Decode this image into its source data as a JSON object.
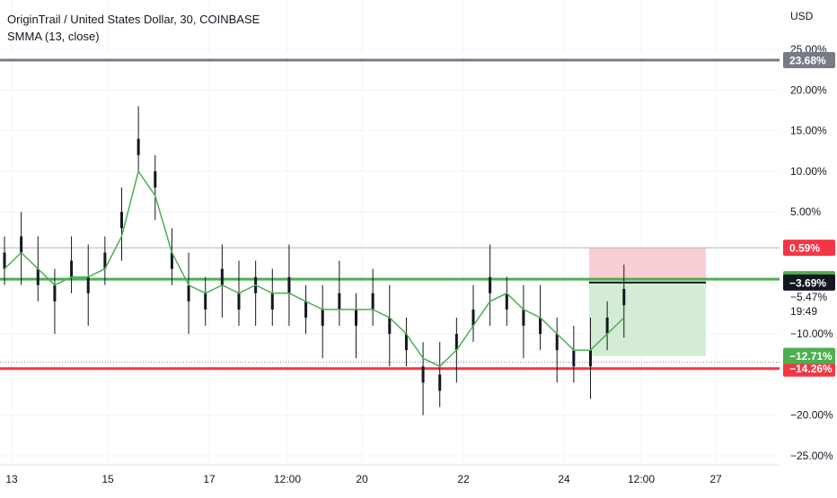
{
  "legend": {
    "symbol": "OriginTrail / United States Dollar, 30, COINBASE",
    "indicator": "SMMA (13, close)"
  },
  "colors": {
    "candle": "#131722",
    "smma": "#4caf50",
    "green_line": "#4caf50",
    "red_line": "#f23645",
    "gray_line": "#787b86",
    "grid": "#f0f3fa",
    "axis_text": "#131722",
    "stop_zone": "#f9cfd3",
    "target_zone": "#d4ecd5"
  },
  "chart_data": {
    "type": "line",
    "price_axis_unit": "USD",
    "y_unit": "percent",
    "ylim": [
      -25,
      25
    ],
    "y_ticks": [
      {
        "value": 25,
        "label": "25.00%"
      },
      {
        "value": 20,
        "label": "20.00%"
      },
      {
        "value": 15,
        "label": "15.00%"
      },
      {
        "value": 10,
        "label": "10.00%"
      },
      {
        "value": 5,
        "label": "5.00%"
      },
      {
        "value": -10,
        "label": "−10.00%"
      },
      {
        "value": -20,
        "label": "−20.00%"
      },
      {
        "value": -25,
        "label": "−25.00%"
      }
    ],
    "x_ticks": [
      "13",
      "15",
      "17",
      "12:00",
      "20",
      "22",
      "24",
      "12:00",
      "27"
    ],
    "grid": true,
    "horizontal_lines": [
      {
        "name": "gray",
        "value": 23.68,
        "label": "23.68%"
      },
      {
        "name": "green",
        "value": -3.27,
        "label": "−3.27%"
      },
      {
        "name": "red",
        "value": -14.26,
        "label": "−14.26%"
      }
    ],
    "position": {
      "entry": -3.69,
      "entry_label": "−3.69%",
      "stop": 0.59,
      "stop_label": "0.59%",
      "target": -12.71,
      "target_label": "−12.71%"
    },
    "reference_line": 0.59,
    "dotted_line": -13.5,
    "last_price": {
      "value": -5.47,
      "label": "−5.47%",
      "countdown": "19:49"
    },
    "series": [
      {
        "indicator": "SMMA (13, close)",
        "x": [
          0,
          0.4,
          0.8,
          1.2,
          1.6,
          2,
          2.4,
          2.8,
          3.2,
          3.6,
          4,
          4.4,
          4.8,
          5.2,
          5.6,
          6,
          6.4,
          6.8,
          7.2,
          7.6,
          8,
          8.4,
          8.8,
          9.2,
          9.6,
          10,
          10.4,
          10.8,
          11.2,
          11.6,
          12,
          12.4,
          12.8,
          13.2,
          13.6,
          14,
          14.4,
          14.8
        ],
        "values": [
          -2,
          0,
          -2,
          -4,
          -3,
          -3,
          -2,
          2,
          10,
          7,
          0,
          -4,
          -5,
          -4,
          -5,
          -4,
          -5,
          -5,
          -6,
          -7,
          -7,
          -7,
          -7,
          -8,
          -10,
          -13,
          -14,
          -12,
          -9,
          -6,
          -5,
          -7,
          -8,
          -10,
          -12,
          -12,
          -10,
          -8
        ]
      },
      {
        "candle_close": true,
        "x": [
          0,
          0.4,
          0.8,
          1.2,
          1.6,
          2,
          2.4,
          2.8,
          3.2,
          3.6,
          4,
          4.4,
          4.8,
          5.2,
          5.6,
          6,
          6.4,
          6.8,
          7.2,
          7.6,
          8,
          8.4,
          8.8,
          9.2,
          9.6,
          10,
          10.4,
          10.8,
          11.2,
          11.6,
          12,
          12.4,
          12.8,
          13.2,
          13.6,
          14,
          14.4,
          14.8
        ],
        "values": [
          -1,
          1,
          -3,
          -5,
          -2,
          -4,
          -1,
          4,
          13,
          9,
          -1,
          -5,
          -6,
          -3,
          -6,
          -4,
          -6,
          -4,
          -7,
          -8,
          -6,
          -8,
          -6,
          -9,
          -11,
          -15,
          -16,
          -11,
          -8,
          -4,
          -6,
          -8,
          -9,
          -11,
          -13,
          -13,
          -9,
          -5.47
        ]
      }
    ]
  }
}
